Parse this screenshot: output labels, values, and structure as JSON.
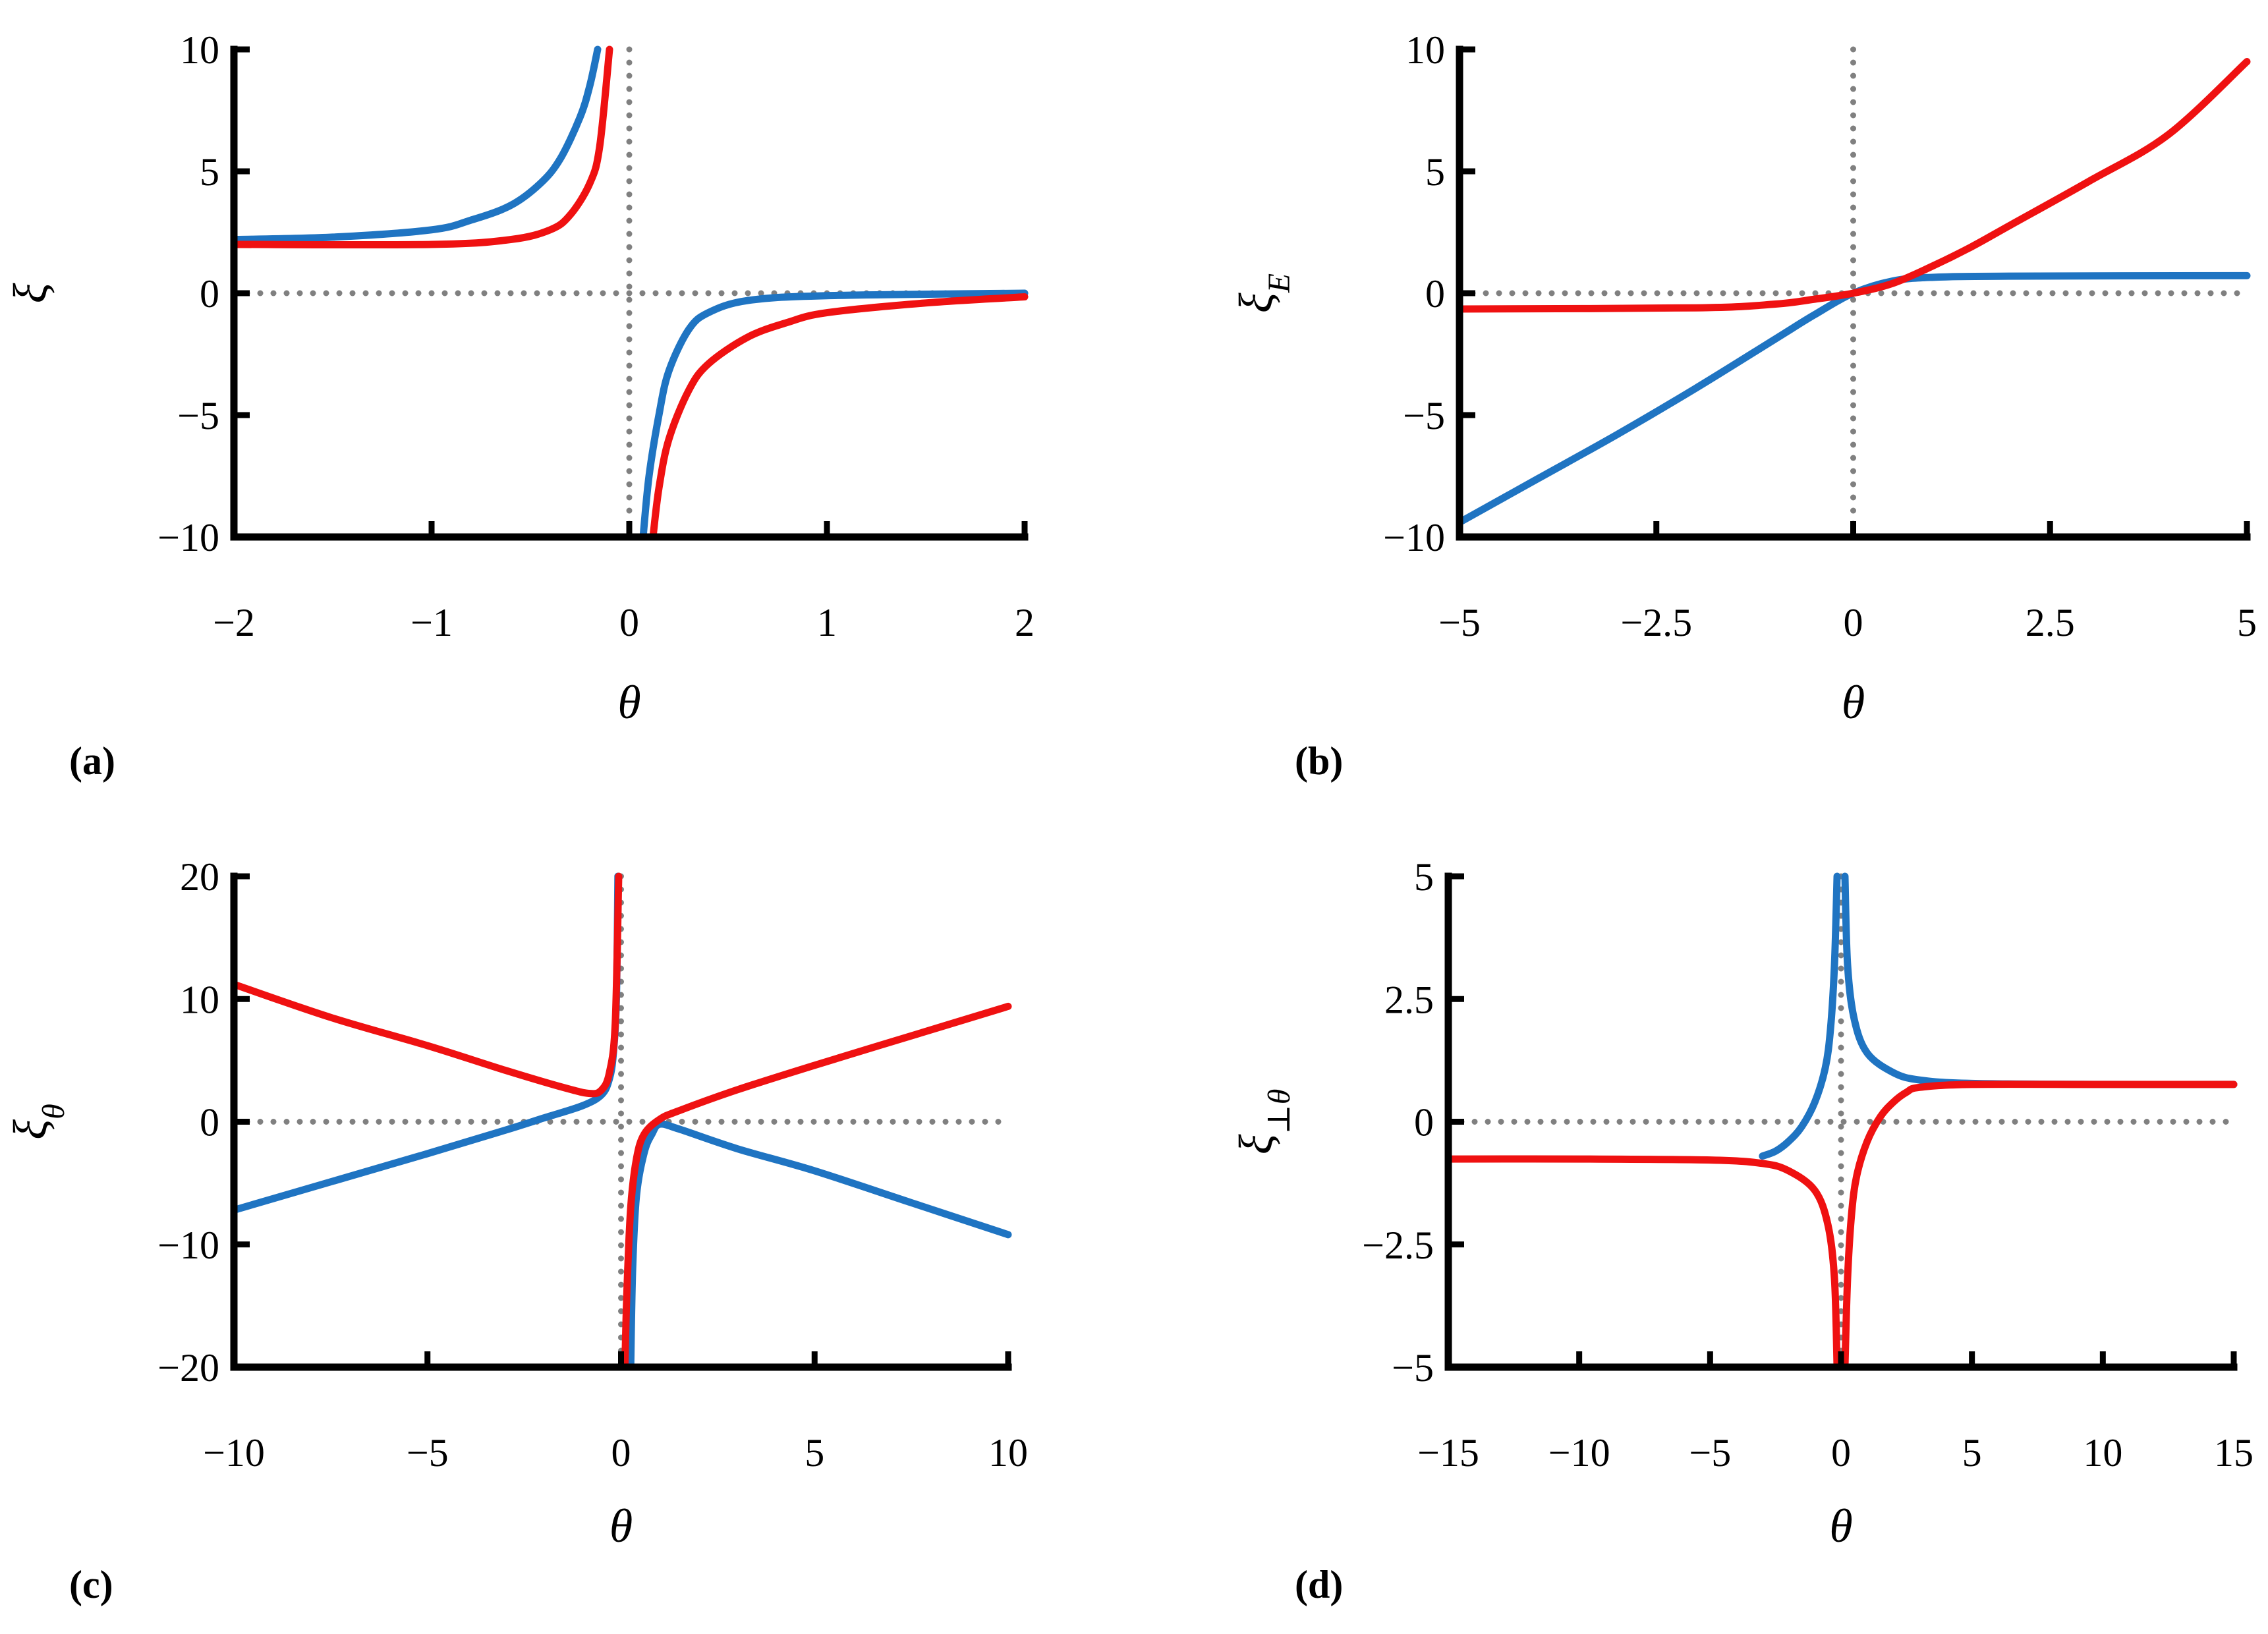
{
  "colors": {
    "blue": "#1f74c2",
    "red": "#ef1111",
    "reference": "#808080",
    "axis": "#000000"
  },
  "chart_data": [
    {
      "type": "line",
      "panel_label": "(a)",
      "xlabel": "θ",
      "ylabel": {
        "main": "ξ",
        "sub": ""
      },
      "xlim": [
        -2,
        2
      ],
      "ylim": [
        -10,
        10
      ],
      "xticks": [
        -2,
        -1,
        0,
        1,
        2
      ],
      "xtick_labels": [
        "−2",
        "−1",
        "0",
        "1",
        "2"
      ],
      "yticks": [
        -10,
        -5,
        0,
        5,
        10
      ],
      "ytick_labels": [
        "−10",
        "−5",
        "0",
        "5",
        "10"
      ],
      "series": [
        {
          "name": "blue",
          "color": "blue",
          "points": [
            [
              -2,
              2.2
            ],
            [
              -1.5,
              2.3
            ],
            [
              -1,
              2.6
            ],
            [
              -0.8,
              3.0
            ],
            [
              -0.6,
              3.6
            ],
            [
              -0.45,
              4.5
            ],
            [
              -0.35,
              5.5
            ],
            [
              -0.25,
              7.2
            ],
            [
              -0.2,
              8.5
            ],
            [
              -0.16,
              10
            ]
          ]
        },
        {
          "name": "blue",
          "color": "blue",
          "points": [
            [
              0.07,
              -10
            ],
            [
              0.1,
              -7.5
            ],
            [
              0.15,
              -5.0
            ],
            [
              0.2,
              -3.2
            ],
            [
              0.3,
              -1.5
            ],
            [
              0.4,
              -0.8
            ],
            [
              0.6,
              -0.3
            ],
            [
              1,
              -0.1
            ],
            [
              2,
              0
            ]
          ]
        },
        {
          "name": "red",
          "color": "red",
          "points": [
            [
              -2,
              2.0
            ],
            [
              -1,
              2.0
            ],
            [
              -0.6,
              2.2
            ],
            [
              -0.4,
              2.6
            ],
            [
              -0.3,
              3.2
            ],
            [
              -0.2,
              4.5
            ],
            [
              -0.15,
              6.0
            ],
            [
              -0.1,
              10
            ]
          ]
        },
        {
          "name": "red",
          "color": "red",
          "points": [
            [
              0.12,
              -10
            ],
            [
              0.15,
              -8.0
            ],
            [
              0.2,
              -6.0
            ],
            [
              0.3,
              -4.0
            ],
            [
              0.4,
              -2.9
            ],
            [
              0.6,
              -1.8
            ],
            [
              0.8,
              -1.2
            ],
            [
              1,
              -0.8
            ],
            [
              1.5,
              -0.4
            ],
            [
              2,
              -0.15
            ]
          ]
        }
      ]
    },
    {
      "type": "line",
      "panel_label": "(b)",
      "xlabel": "θ",
      "ylabel": {
        "main": "ξ",
        "sub": "E"
      },
      "xlim": [
        -5,
        5
      ],
      "ylim": [
        -10,
        10
      ],
      "xticks": [
        -5,
        -2.5,
        0,
        2.5,
        5
      ],
      "xtick_labels": [
        "−5",
        "−2.5",
        "0",
        "2.5",
        "5"
      ],
      "yticks": [
        -10,
        -5,
        0,
        5,
        10
      ],
      "ytick_labels": [
        "−10",
        "−5",
        "0",
        "5",
        "10"
      ],
      "series": [
        {
          "name": "blue",
          "color": "blue",
          "points": [
            [
              -5,
              -9.4
            ],
            [
              -4,
              -7.6
            ],
            [
              -3,
              -5.8
            ],
            [
              -2,
              -3.9
            ],
            [
              -1,
              -1.9
            ],
            [
              -0.5,
              -0.9
            ],
            [
              0,
              0
            ],
            [
              0.5,
              0.5
            ],
            [
              1,
              0.65
            ],
            [
              2,
              0.7
            ],
            [
              5,
              0.72
            ]
          ]
        },
        {
          "name": "red",
          "color": "red",
          "points": [
            [
              -5,
              -0.65
            ],
            [
              -2,
              -0.6
            ],
            [
              -1,
              -0.45
            ],
            [
              -0.5,
              -0.25
            ],
            [
              0,
              0
            ],
            [
              0.5,
              0.4
            ],
            [
              1,
              1.1
            ],
            [
              1.5,
              1.9
            ],
            [
              2,
              2.8
            ],
            [
              3,
              4.6
            ],
            [
              4,
              6.5
            ],
            [
              5,
              9.5
            ]
          ]
        }
      ]
    },
    {
      "type": "line",
      "panel_label": "(c)",
      "xlabel": "θ",
      "ylabel": {
        "main": "ξ",
        "sub": "θ"
      },
      "xlim": [
        -10,
        10
      ],
      "ylim": [
        -20,
        20
      ],
      "xticks": [
        -10,
        -5,
        0,
        5,
        10
      ],
      "xtick_labels": [
        "−10",
        "−5",
        "0",
        "5",
        "10"
      ],
      "yticks": [
        -20,
        -10,
        0,
        10,
        20
      ],
      "ytick_labels": [
        "−20",
        "−10",
        "0",
        "10",
        "20"
      ],
      "series": [
        {
          "name": "blue",
          "color": "blue",
          "points": [
            [
              -10,
              -7.2
            ],
            [
              -7.5,
              -4.9
            ],
            [
              -5,
              -2.6
            ],
            [
              -3,
              -0.7
            ],
            [
              -2,
              0.3
            ],
            [
              -1,
              1.3
            ],
            [
              -0.5,
              2.2
            ],
            [
              -0.3,
              3.5
            ],
            [
              -0.2,
              5.5
            ],
            [
              -0.12,
              10
            ],
            [
              -0.08,
              20
            ]
          ]
        },
        {
          "name": "blue",
          "color": "blue",
          "points": [
            [
              0.25,
              -20
            ],
            [
              0.3,
              -12
            ],
            [
              0.4,
              -6.0
            ],
            [
              0.6,
              -2.5
            ],
            [
              0.8,
              -1.0
            ],
            [
              1,
              -0.2
            ],
            [
              1.5,
              -0.6
            ],
            [
              3,
              -2.2
            ],
            [
              5,
              -4.0
            ],
            [
              7.5,
              -6.6
            ],
            [
              10,
              -9.2
            ]
          ]
        },
        {
          "name": "red",
          "color": "red",
          "points": [
            [
              -10,
              11.2
            ],
            [
              -7.5,
              8.5
            ],
            [
              -5,
              6.2
            ],
            [
              -3,
              4.2
            ],
            [
              -1.5,
              2.8
            ],
            [
              -0.8,
              2.3
            ],
            [
              -0.5,
              2.6
            ],
            [
              -0.3,
              4.0
            ],
            [
              -0.15,
              8.0
            ],
            [
              -0.06,
              20
            ]
          ]
        },
        {
          "name": "red",
          "color": "red",
          "points": [
            [
              0.1,
              -20
            ],
            [
              0.15,
              -14
            ],
            [
              0.25,
              -7.0
            ],
            [
              0.4,
              -3.0
            ],
            [
              0.6,
              -1.0
            ],
            [
              1,
              0.2
            ],
            [
              1.5,
              0.9
            ],
            [
              3,
              2.6
            ],
            [
              5,
              4.6
            ],
            [
              7.5,
              7.0
            ],
            [
              10,
              9.4
            ]
          ]
        }
      ]
    },
    {
      "type": "line",
      "panel_label": "(d)",
      "xlabel": "θ",
      "ylabel": {
        "main": "ξ",
        "sub": "⊥θ"
      },
      "xlim": [
        -15,
        15
      ],
      "ylim": [
        -5,
        5
      ],
      "xticks": [
        -15,
        -10,
        -5,
        0,
        5,
        10,
        15
      ],
      "xtick_labels": [
        "−15",
        "−10",
        "−5",
        "0",
        "5",
        "10",
        "15"
      ],
      "yticks": [
        -5,
        -2.5,
        0,
        2.5,
        5
      ],
      "ytick_labels": [
        "−5",
        "−2.5",
        "0",
        "2.5",
        "5"
      ],
      "series": [
        {
          "name": "blue",
          "color": "blue",
          "points": [
            [
              -3,
              -0.7
            ],
            [
              -2.5,
              -0.6
            ],
            [
              -2,
              -0.4
            ],
            [
              -1.5,
              -0.1
            ],
            [
              -1,
              0.4
            ],
            [
              -0.6,
              1.1
            ],
            [
              -0.4,
              1.9
            ],
            [
              -0.25,
              3.2
            ],
            [
              -0.15,
              5
            ]
          ]
        },
        {
          "name": "blue",
          "color": "blue",
          "points": [
            [
              0.15,
              5
            ],
            [
              0.25,
              3.2
            ],
            [
              0.5,
              2.1
            ],
            [
              1,
              1.4
            ],
            [
              2,
              1.0
            ],
            [
              3,
              0.85
            ],
            [
              5,
              0.78
            ],
            [
              10,
              0.76
            ],
            [
              15,
              0.76
            ]
          ]
        },
        {
          "name": "red",
          "color": "red",
          "points": [
            [
              -15,
              -0.76
            ],
            [
              -10,
              -0.76
            ],
            [
              -5,
              -0.78
            ],
            [
              -3,
              -0.85
            ],
            [
              -2,
              -1.0
            ],
            [
              -1,
              -1.4
            ],
            [
              -0.5,
              -2.1
            ],
            [
              -0.25,
              -3.2
            ],
            [
              -0.15,
              -5
            ]
          ]
        },
        {
          "name": "red",
          "color": "red",
          "points": [
            [
              0.15,
              -5
            ],
            [
              0.25,
              -3.2
            ],
            [
              0.4,
              -1.9
            ],
            [
              0.6,
              -1.1
            ],
            [
              1,
              -0.4
            ],
            [
              1.5,
              0.1
            ],
            [
              2,
              0.4
            ],
            [
              2.5,
              0.6
            ],
            [
              3,
              0.7
            ],
            [
              5,
              0.76
            ],
            [
              10,
              0.76
            ],
            [
              15,
              0.76
            ]
          ]
        }
      ]
    }
  ]
}
